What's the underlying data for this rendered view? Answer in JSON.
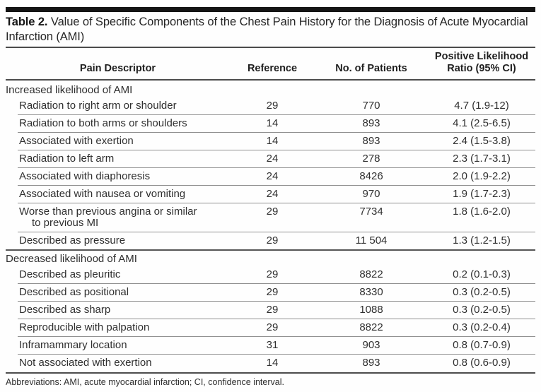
{
  "title": {
    "label": "Table 2.",
    "text": " Value of Specific Components of the Chest Pain History for the Diagnosis of Acute Myocardial Infarction (AMI)"
  },
  "columns": {
    "descriptor": "Pain Descriptor",
    "reference": "Reference",
    "patients": "No. of Patients",
    "ratio": "Positive Likelihood\nRatio (95% CI)"
  },
  "sections": [
    {
      "header": "Increased likelihood of AMI",
      "rows": [
        {
          "descriptor": "Radiation to right arm or shoulder",
          "reference": "29",
          "patients": "770",
          "ratio": "4.7 (1.9-12)"
        },
        {
          "descriptor": "Radiation to both arms or shoulders",
          "reference": "14",
          "patients": "893",
          "ratio": "4.1 (2.5-6.5)"
        },
        {
          "descriptor": "Associated with exertion",
          "reference": "14",
          "patients": "893",
          "ratio": "2.4 (1.5-3.8)"
        },
        {
          "descriptor": "Radiation to left arm",
          "reference": "24",
          "patients": "278",
          "ratio": "2.3 (1.7-3.1)"
        },
        {
          "descriptor": "Associated with diaphoresis",
          "reference": "24",
          "patients": "8426",
          "ratio": "2.0 (1.9-2.2)"
        },
        {
          "descriptor": "Associated with nausea or vomiting",
          "reference": "24",
          "patients": "970",
          "ratio": "1.9 (1.7-2.3)"
        },
        {
          "descriptor": "Worse than previous angina or similar\nto previous MI",
          "reference": "29",
          "patients": "7734",
          "ratio": "1.8 (1.6-2.0)"
        },
        {
          "descriptor": "Described as pressure",
          "reference": "29",
          "patients": "11 504",
          "ratio": "1.3 (1.2-1.5)"
        }
      ]
    },
    {
      "header": "Decreased likelihood of AMI",
      "rows": [
        {
          "descriptor": "Described as pleuritic",
          "reference": "29",
          "patients": "8822",
          "ratio": "0.2 (0.1-0.3)"
        },
        {
          "descriptor": "Described as positional",
          "reference": "29",
          "patients": "8330",
          "ratio": "0.3 (0.2-0.5)"
        },
        {
          "descriptor": "Described as sharp",
          "reference": "29",
          "patients": "1088",
          "ratio": "0.3 (0.2-0.5)"
        },
        {
          "descriptor": "Reproducible with palpation",
          "reference": "29",
          "patients": "8822",
          "ratio": "0.3 (0.2-0.4)"
        },
        {
          "descriptor": "Inframammary location",
          "reference": "31",
          "patients": "903",
          "ratio": "0.8 (0.7-0.9)"
        },
        {
          "descriptor": "Not associated with exertion",
          "reference": "14",
          "patients": "893",
          "ratio": "0.8 (0.6-0.9)"
        }
      ]
    }
  ],
  "footnote": "Abbreviations: AMI, acute myocardial infarction; CI, confidence interval.",
  "colors": {
    "top_bar": "#141414",
    "text": "#2f2f2f",
    "rule_heavy": "#4c4c4c",
    "rule_light": "#909090",
    "background": "#fefefe"
  }
}
